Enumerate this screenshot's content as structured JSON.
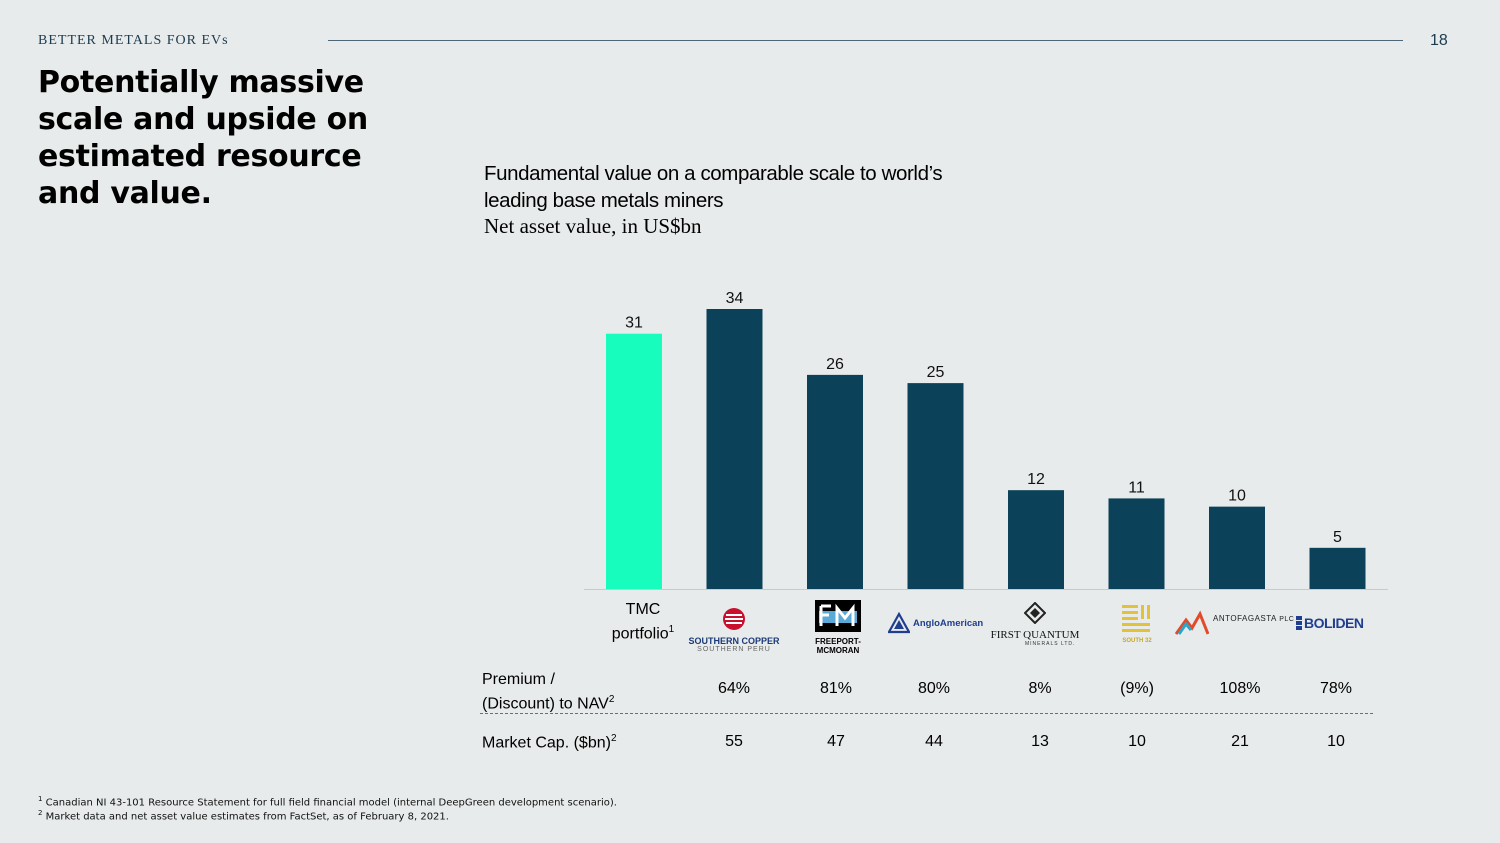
{
  "header": {
    "section_label": "BETTER METALS FOR EVs",
    "page_number": "18",
    "headline": "Potentially massive scale and upside on estimated resource and value."
  },
  "chart_data": {
    "type": "bar",
    "title": "Fundamental value on a comparable scale to world’s leading base metals miners",
    "subtitle": "Net asset value, in US$bn",
    "categories": [
      "TMC portfolio",
      "Southern Copper",
      "Freeport-McMoRan",
      "Anglo American",
      "First Quantum Minerals",
      "South32",
      "Antofagasta PLC",
      "Boliden"
    ],
    "values": [
      31,
      34,
      26,
      25,
      12,
      11,
      10,
      5
    ],
    "value_labels": [
      "31",
      "34",
      "26",
      "25",
      "12",
      "11",
      "10",
      "5"
    ],
    "ylim": [
      0,
      34
    ],
    "colors": [
      "#16fdbe",
      "#0b4159",
      "#0b4159",
      "#0b4159",
      "#0b4159",
      "#0b4159",
      "#0b4159",
      "#0b4159"
    ],
    "grid": false
  },
  "tmc": {
    "line1": "TMC",
    "line2": "portfolio",
    "footnote": "1"
  },
  "logos": {
    "southern_copper": {
      "name": "SOUTHERN COPPER",
      "sub": "SOUTHERN PERU"
    },
    "freeport": {
      "line1": "FREEPORT-",
      "line2": "MCMORAN"
    },
    "anglo": {
      "name": "AngloAmerican"
    },
    "first_quantum": {
      "name": "FIRST QUANTUM",
      "sub": "MINERALS LTD."
    },
    "south32": {
      "name": "SOUTH 32"
    },
    "antofagasta": {
      "name": "ANTOFAGASTA",
      "suffix": "PLC"
    },
    "boliden": {
      "name": "BOLIDEN"
    }
  },
  "table": {
    "premium_label_line1": "Premium /",
    "premium_label_line2": "(Discount) to NAV",
    "premium_sup": "2",
    "premium": [
      "64%",
      "81%",
      "80%",
      "8%",
      "(9%)",
      "108%",
      "78%"
    ],
    "marketcap_label": "Market Cap. ($bn)",
    "marketcap_sup": "2",
    "marketcap": [
      "55",
      "47",
      "44",
      "13",
      "10",
      "21",
      "10"
    ]
  },
  "footnotes": {
    "fn1_mark": "1",
    "fn1": "Canadian NI 43-101 Resource Statement for full field financial model (internal DeepGreen development scenario).",
    "fn2_mark": "2",
    "fn2": "Market data and net asset value estimates from FactSet, as of February 8, 2021."
  },
  "colors": {
    "tmc_accent": "#16fdbe",
    "peer_bar": "#0b4159",
    "text_dark": "#1c3b4f"
  }
}
